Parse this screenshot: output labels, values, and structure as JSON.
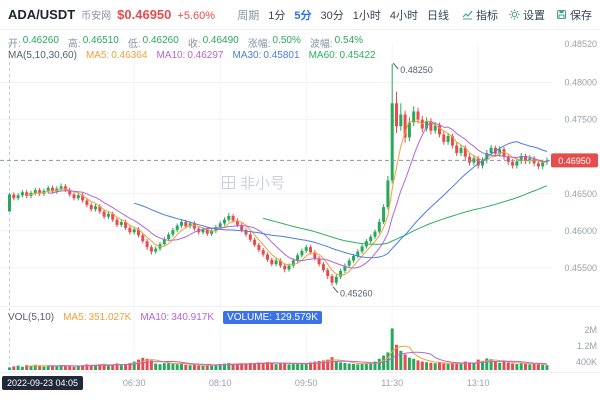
{
  "header": {
    "symbol": "ADA/USDT",
    "exchange": "币安网",
    "price": "$0.46950",
    "change": "+5.60%",
    "period_label": "周期",
    "periods": [
      "1分",
      "5分",
      "30分",
      "1小时",
      "4小时",
      "日线"
    ],
    "selected_period": "5分",
    "tools": [
      {
        "label": "指标",
        "icon": "indicator-chart-icon"
      },
      {
        "label": "设置",
        "icon": "gear-icon"
      },
      {
        "label": "保存",
        "icon": "save-icon"
      }
    ]
  },
  "ohlc_bar": {
    "open_label": "开:",
    "open": "0.46260",
    "high_label": "高:",
    "high": "0.46510",
    "low_label": "低:",
    "low": "0.46260",
    "close_label": "收:",
    "close": "0.46490",
    "change_label": "涨幅:",
    "change": "0.50%",
    "amplitude_label": "波幅:",
    "amplitude": "0.54%"
  },
  "ma_bar": {
    "title": "MA(5,10,30,60)",
    "ma5_label": "MA5:",
    "ma5": "0.46364",
    "ma10_label": "MA10:",
    "ma10": "0.46297",
    "ma30_label": "MA30:",
    "ma30": "0.45801",
    "ma60_label": "MA60:",
    "ma60": "0.45422"
  },
  "vol_bar": {
    "title": "VOL(5,10)",
    "ma5_label": "MA5:",
    "ma5": "351.027K",
    "ma10_label": "MA10:",
    "ma10": "340.917K",
    "volume_label": "VOLUME:",
    "volume": "129.579K"
  },
  "crosshair_time": "2022-09-23 04:05",
  "watermark": "非小号",
  "colors": {
    "up": "#26a95c",
    "down": "#e54d4d",
    "accent": "#2e6bf2",
    "ma5": "#f0a13a",
    "ma10": "#b565d9",
    "ma30": "#4a7ce8",
    "ma60": "#2fae62",
    "axis_text": "#9aa1ab",
    "volume_chip": "#3b72e8",
    "badge_text": "#ffffff"
  },
  "chart_data": {
    "type": "candlestick_with_volume",
    "timeframe": "5分",
    "grid": true,
    "legend_position": "top-left-overlay",
    "price_axis": {
      "min": 0.4504,
      "max": 0.4852,
      "side": "right"
    },
    "volume_axis": {
      "max_k": 2300,
      "side": "right"
    },
    "price_ticks": [
      {
        "label": "0.48520",
        "value": 0.4852
      },
      {
        "label": "0.48000",
        "value": 0.48
      },
      {
        "label": "0.47500",
        "value": 0.475
      },
      {
        "label": "0.46500",
        "value": 0.465
      },
      {
        "label": "0.46000",
        "value": 0.46
      },
      {
        "label": "0.45500",
        "value": 0.455
      }
    ],
    "current_price": {
      "label": "0.46950",
      "value": 0.4695
    },
    "volume_ticks": [
      {
        "label": "2M",
        "value_k": 2000
      },
      {
        "label": "1.2M",
        "value_k": 1200
      },
      {
        "label": "400K",
        "value_k": 400
      }
    ],
    "x_labels": [
      "06:30",
      "08:10",
      "09:50",
      "11:30",
      "13:10"
    ],
    "x_label_indices": [
      29,
      49,
      69,
      89,
      109
    ],
    "annotations": [
      {
        "label": "0.48250",
        "value": 0.4825,
        "index": 89,
        "position": "high"
      },
      {
        "label": "0.45260",
        "value": 0.4526,
        "index": 75,
        "position": "low"
      }
    ],
    "ma_periods": [
      5,
      10,
      30,
      60
    ],
    "vol_ma_periods": [
      5,
      10
    ],
    "candles": [
      [
        0.4626,
        0.4651,
        0.4626,
        0.4649
      ],
      [
        0.4649,
        0.4652,
        0.4641,
        0.4644
      ],
      [
        0.4644,
        0.4651,
        0.4641,
        0.4648
      ],
      [
        0.4648,
        0.4655,
        0.4645,
        0.4652
      ],
      [
        0.4652,
        0.4655,
        0.4644,
        0.4647
      ],
      [
        0.4647,
        0.4654,
        0.4644,
        0.4651
      ],
      [
        0.4651,
        0.4658,
        0.4648,
        0.4655
      ],
      [
        0.4655,
        0.4658,
        0.4647,
        0.465
      ],
      [
        0.465,
        0.4657,
        0.4647,
        0.4654
      ],
      [
        0.4654,
        0.4661,
        0.4651,
        0.4658
      ],
      [
        0.4658,
        0.4661,
        0.465,
        0.4653
      ],
      [
        0.4653,
        0.466,
        0.465,
        0.4657
      ],
      [
        0.4657,
        0.4664,
        0.4654,
        0.466
      ],
      [
        0.466,
        0.4663,
        0.4652,
        0.4655
      ],
      [
        0.4655,
        0.4658,
        0.4646,
        0.4649
      ],
      [
        0.4649,
        0.4652,
        0.4641,
        0.4644
      ],
      [
        0.4644,
        0.4651,
        0.4641,
        0.4648
      ],
      [
        0.4648,
        0.4651,
        0.4638,
        0.4641
      ],
      [
        0.4641,
        0.4644,
        0.4632,
        0.4635
      ],
      [
        0.4635,
        0.4638,
        0.4626,
        0.4629
      ],
      [
        0.4629,
        0.4636,
        0.4626,
        0.4633
      ],
      [
        0.4633,
        0.4636,
        0.4623,
        0.4626
      ],
      [
        0.4626,
        0.4629,
        0.4616,
        0.4619
      ],
      [
        0.4619,
        0.4626,
        0.4616,
        0.4623
      ],
      [
        0.4623,
        0.4626,
        0.4612,
        0.4615
      ],
      [
        0.4615,
        0.4618,
        0.4605,
        0.4608
      ],
      [
        0.4608,
        0.4615,
        0.4605,
        0.4612
      ],
      [
        0.4612,
        0.4615,
        0.4601,
        0.4604
      ],
      [
        0.4604,
        0.4607,
        0.4595,
        0.4598
      ],
      [
        0.4598,
        0.4605,
        0.4595,
        0.4602
      ],
      [
        0.4602,
        0.4605,
        0.4591,
        0.4594
      ],
      [
        0.4594,
        0.4597,
        0.4583,
        0.4586
      ],
      [
        0.4586,
        0.4589,
        0.4574,
        0.4578
      ],
      [
        0.4578,
        0.4581,
        0.4568,
        0.4572
      ],
      [
        0.4572,
        0.4579,
        0.4569,
        0.4576
      ],
      [
        0.4576,
        0.4585,
        0.4573,
        0.4582
      ],
      [
        0.4582,
        0.4592,
        0.4579,
        0.4589
      ],
      [
        0.4589,
        0.4598,
        0.4586,
        0.4595
      ],
      [
        0.4595,
        0.4604,
        0.4592,
        0.4601
      ],
      [
        0.4601,
        0.461,
        0.4598,
        0.4607
      ],
      [
        0.4607,
        0.4616,
        0.4604,
        0.4612
      ],
      [
        0.4612,
        0.4615,
        0.4603,
        0.4606
      ],
      [
        0.4606,
        0.4613,
        0.4603,
        0.461
      ],
      [
        0.461,
        0.4613,
        0.46,
        0.4603
      ],
      [
        0.4603,
        0.4606,
        0.4595,
        0.4598
      ],
      [
        0.4598,
        0.4605,
        0.4595,
        0.4602
      ],
      [
        0.4602,
        0.4605,
        0.4593,
        0.4596
      ],
      [
        0.4596,
        0.4603,
        0.4593,
        0.46
      ],
      [
        0.46,
        0.4608,
        0.4597,
        0.4605
      ],
      [
        0.4605,
        0.4613,
        0.4602,
        0.461
      ],
      [
        0.461,
        0.4618,
        0.4607,
        0.4615
      ],
      [
        0.4615,
        0.4624,
        0.4612,
        0.462
      ],
      [
        0.462,
        0.4623,
        0.4611,
        0.4614
      ],
      [
        0.4614,
        0.4617,
        0.4605,
        0.4608
      ],
      [
        0.4608,
        0.4611,
        0.4598,
        0.4601
      ],
      [
        0.4601,
        0.4604,
        0.4592,
        0.4595
      ],
      [
        0.4595,
        0.4598,
        0.4585,
        0.4588
      ],
      [
        0.4588,
        0.4591,
        0.4578,
        0.4581
      ],
      [
        0.4581,
        0.4584,
        0.4571,
        0.4574
      ],
      [
        0.4574,
        0.4577,
        0.4565,
        0.4568
      ],
      [
        0.4568,
        0.4571,
        0.4558,
        0.4561
      ],
      [
        0.4561,
        0.4564,
        0.4552,
        0.4555
      ],
      [
        0.4555,
        0.4563,
        0.4552,
        0.456
      ],
      [
        0.456,
        0.4563,
        0.455,
        0.4553
      ],
      [
        0.4553,
        0.4556,
        0.4544,
        0.4548
      ],
      [
        0.4548,
        0.4556,
        0.4545,
        0.4553
      ],
      [
        0.4553,
        0.4563,
        0.455,
        0.456
      ],
      [
        0.456,
        0.457,
        0.4557,
        0.4567
      ],
      [
        0.4567,
        0.4576,
        0.4564,
        0.4573
      ],
      [
        0.4573,
        0.4581,
        0.457,
        0.4578
      ],
      [
        0.4578,
        0.4581,
        0.4568,
        0.4571
      ],
      [
        0.4571,
        0.4574,
        0.456,
        0.4563
      ],
      [
        0.4563,
        0.4566,
        0.4552,
        0.4555
      ],
      [
        0.4555,
        0.4558,
        0.4544,
        0.4547
      ],
      [
        0.4547,
        0.455,
        0.4535,
        0.4539
      ],
      [
        0.4539,
        0.4542,
        0.4526,
        0.453
      ],
      [
        0.453,
        0.4541,
        0.4527,
        0.4538
      ],
      [
        0.4538,
        0.4549,
        0.4535,
        0.4546
      ],
      [
        0.4546,
        0.4556,
        0.4543,
        0.4553
      ],
      [
        0.4553,
        0.4563,
        0.455,
        0.456
      ],
      [
        0.456,
        0.4569,
        0.4557,
        0.4566
      ],
      [
        0.4566,
        0.4575,
        0.4563,
        0.4572
      ],
      [
        0.4572,
        0.4582,
        0.4569,
        0.4579
      ],
      [
        0.4579,
        0.4589,
        0.4576,
        0.4586
      ],
      [
        0.4586,
        0.4595,
        0.4583,
        0.4592
      ],
      [
        0.4592,
        0.4602,
        0.4589,
        0.4599
      ],
      [
        0.4599,
        0.4616,
        0.4596,
        0.4612
      ],
      [
        0.4612,
        0.4636,
        0.4609,
        0.4632
      ],
      [
        0.4632,
        0.4674,
        0.4629,
        0.4668
      ],
      [
        0.4668,
        0.4825,
        0.4664,
        0.4772
      ],
      [
        0.4772,
        0.4788,
        0.4732,
        0.4741
      ],
      [
        0.4741,
        0.4772,
        0.4735,
        0.4757
      ],
      [
        0.4757,
        0.4762,
        0.4719,
        0.4726
      ],
      [
        0.4726,
        0.4753,
        0.4721,
        0.4746
      ],
      [
        0.4746,
        0.4768,
        0.4741,
        0.4761
      ],
      [
        0.4761,
        0.4766,
        0.4745,
        0.475
      ],
      [
        0.475,
        0.4755,
        0.4733,
        0.4738
      ],
      [
        0.4738,
        0.4753,
        0.4734,
        0.4748
      ],
      [
        0.4748,
        0.4752,
        0.473,
        0.4735
      ],
      [
        0.4735,
        0.4747,
        0.4731,
        0.4742
      ],
      [
        0.4742,
        0.4746,
        0.4726,
        0.473
      ],
      [
        0.473,
        0.4734,
        0.4716,
        0.472
      ],
      [
        0.472,
        0.4732,
        0.4716,
        0.4728
      ],
      [
        0.4728,
        0.4731,
        0.4711,
        0.4715
      ],
      [
        0.4715,
        0.4719,
        0.4701,
        0.4705
      ],
      [
        0.4705,
        0.4716,
        0.4701,
        0.4712
      ],
      [
        0.4712,
        0.4715,
        0.4696,
        0.47
      ],
      [
        0.47,
        0.4704,
        0.4688,
        0.4692
      ],
      [
        0.4692,
        0.4702,
        0.4688,
        0.4698
      ],
      [
        0.4698,
        0.4701,
        0.4684,
        0.4688
      ],
      [
        0.4688,
        0.4699,
        0.4684,
        0.4695
      ],
      [
        0.4695,
        0.4709,
        0.4691,
        0.4705
      ],
      [
        0.4705,
        0.4716,
        0.4701,
        0.4712
      ],
      [
        0.4712,
        0.4715,
        0.47,
        0.4704
      ],
      [
        0.4704,
        0.4714,
        0.47,
        0.471
      ],
      [
        0.471,
        0.4713,
        0.4696,
        0.47
      ],
      [
        0.47,
        0.4703,
        0.4689,
        0.4693
      ],
      [
        0.4693,
        0.4697,
        0.4684,
        0.4688
      ],
      [
        0.4688,
        0.4698,
        0.4684,
        0.4694
      ],
      [
        0.4694,
        0.4705,
        0.469,
        0.4701
      ],
      [
        0.4701,
        0.4704,
        0.469,
        0.4694
      ],
      [
        0.4694,
        0.4702,
        0.469,
        0.4698
      ],
      [
        0.4698,
        0.4701,
        0.4687,
        0.4691
      ],
      [
        0.4691,
        0.4694,
        0.4683,
        0.4687
      ],
      [
        0.4687,
        0.4696,
        0.4683,
        0.4693
      ],
      [
        0.4693,
        0.4699,
        0.4689,
        0.4695
      ]
    ],
    "volumes_k": [
      130,
      180,
      220,
      160,
      240,
      190,
      260,
      210,
      170,
      230,
      200,
      180,
      250,
      210,
      190,
      160,
      220,
      240,
      280,
      260,
      230,
      290,
      310,
      220,
      270,
      330,
      240,
      300,
      350,
      420,
      520,
      610,
      560,
      480,
      320,
      290,
      340,
      380,
      310,
      290,
      330,
      260,
      240,
      280,
      230,
      210,
      250,
      220,
      260,
      300,
      320,
      350,
      280,
      300,
      340,
      310,
      360,
      330,
      380,
      350,
      400,
      370,
      290,
      320,
      360,
      280,
      310,
      340,
      300,
      320,
      380,
      420,
      450,
      480,
      520,
      640,
      440,
      380,
      350,
      320,
      300,
      280,
      310,
      340,
      360,
      420,
      560,
      720,
      880,
      2080,
      1260,
      960,
      780,
      620,
      560,
      480,
      420,
      390,
      360,
      340,
      380,
      330,
      310,
      350,
      320,
      300,
      420,
      380,
      340,
      520,
      460,
      580,
      540,
      400,
      360,
      420,
      380,
      330,
      300,
      340,
      310,
      280,
      320,
      290,
      260,
      240
    ]
  }
}
